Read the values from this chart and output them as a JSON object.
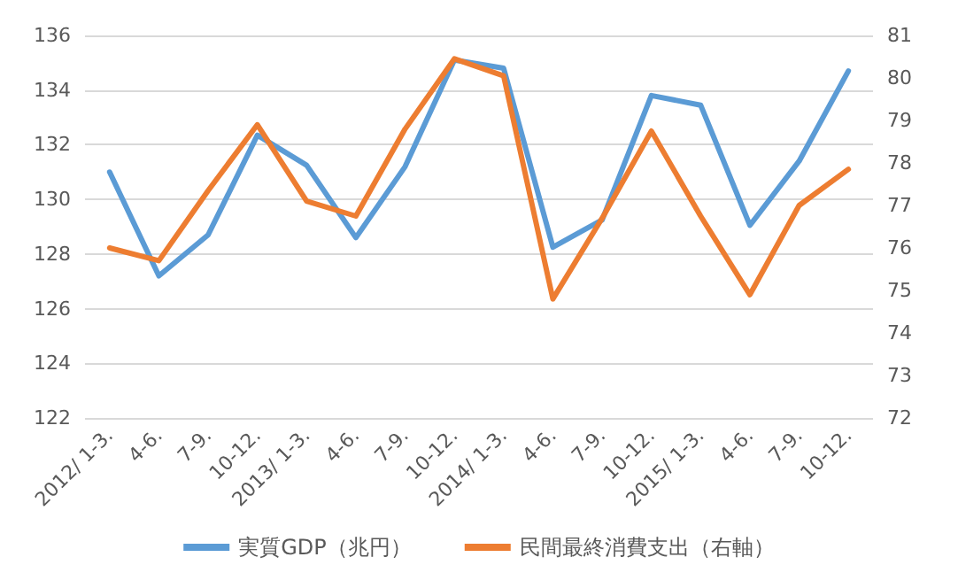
{
  "chart_data": {
    "type": "line",
    "categories": [
      "2012/ 1-3.",
      "4-6.",
      "7-9.",
      "10-12.",
      "2013/ 1-3.",
      "4-6.",
      "7-9.",
      "10-12.",
      "2014/ 1-3.",
      "4-6.",
      "7-9.",
      "10-12.",
      "2015/ 1-3.",
      "4-6.",
      "7-9.",
      "10-12."
    ],
    "series": [
      {
        "name": "実質GDP（兆円）",
        "color": "#5b9bd5",
        "values": [
          131.0,
          127.2,
          128.7,
          132.35,
          131.25,
          128.6,
          131.2,
          135.1,
          134.8,
          128.25,
          129.25,
          133.8,
          133.45,
          129.05,
          131.4,
          134.7
        ]
      },
      {
        "name": "民間最終消費支出（右軸）",
        "color": "#ed7d31",
        "axis": "y2",
        "values": [
          76.0,
          75.7,
          77.35,
          78.9,
          77.1,
          76.75,
          78.8,
          80.45,
          80.05,
          74.8,
          76.7,
          78.75,
          76.75,
          74.9,
          77.0,
          77.85
        ]
      }
    ],
    "ylim": [
      122,
      136
    ],
    "yticks": [
      122,
      124,
      126,
      128,
      130,
      132,
      134,
      136
    ],
    "y2lim": [
      72,
      81
    ],
    "y2ticks": [
      72,
      73,
      74,
      75,
      76,
      77,
      78,
      79,
      80,
      81
    ],
    "grid": "y",
    "legend": "bottom",
    "marker": "none",
    "line_style": "solid"
  }
}
